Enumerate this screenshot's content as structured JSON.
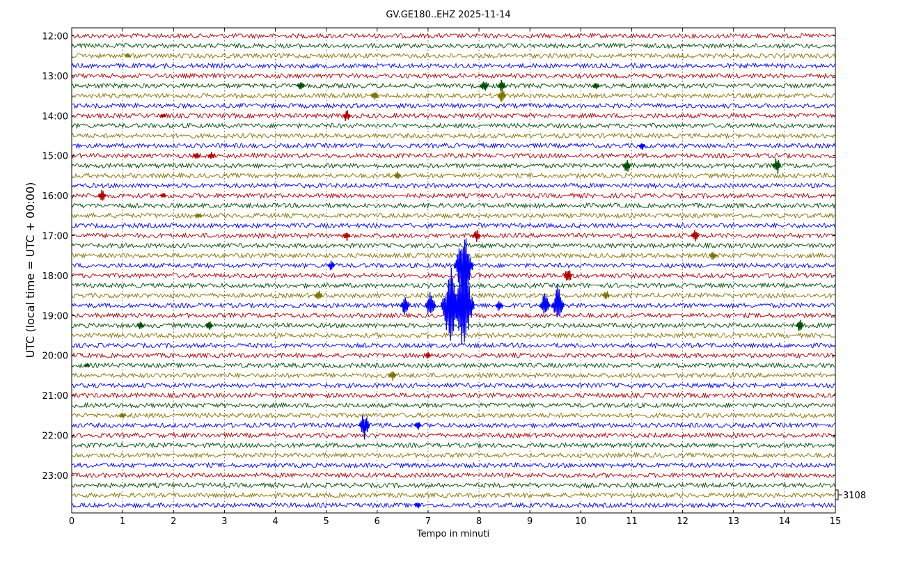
{
  "chart_data": {
    "type": "line",
    "title": "GV.GE180..EHZ 2025-11-14",
    "xlabel": "Tempo in minuti",
    "ylabel": "UTC (local time = UTC + 00:00)",
    "xlim": [
      0,
      15
    ],
    "x_ticks": [
      "0",
      "1",
      "2",
      "3",
      "4",
      "5",
      "6",
      "7",
      "8",
      "9",
      "10",
      "11",
      "12",
      "13",
      "14",
      "15"
    ],
    "y_ticks": [
      "12:00",
      "13:00",
      "14:00",
      "15:00",
      "16:00",
      "17:00",
      "18:00",
      "19:00",
      "20:00",
      "21:00",
      "22:00",
      "23:00"
    ],
    "scale_label": "3108",
    "trace_colors": [
      "#b30000",
      "#004d00",
      "#7f7300",
      "#0000ff"
    ],
    "traces_per_hour": 4,
    "trace_count": 48,
    "grid": "vertical dotted at each minute",
    "events": [
      {
        "trace": 2,
        "minute": 1.1,
        "amp": 4
      },
      {
        "trace": 5,
        "minute": 4.5,
        "amp": 9
      },
      {
        "trace": 5,
        "minute": 8.1,
        "amp": 12
      },
      {
        "trace": 5,
        "minute": 8.45,
        "amp": 10
      },
      {
        "trace": 5,
        "minute": 10.3,
        "amp": 8
      },
      {
        "trace": 6,
        "minute": 5.95,
        "amp": 10
      },
      {
        "trace": 6,
        "minute": 8.45,
        "amp": 12
      },
      {
        "trace": 8,
        "minute": 1.8,
        "amp": 5
      },
      {
        "trace": 8,
        "minute": 5.4,
        "amp": 10
      },
      {
        "trace": 11,
        "minute": 11.2,
        "amp": 7
      },
      {
        "trace": 12,
        "minute": 2.45,
        "amp": 6
      },
      {
        "trace": 12,
        "minute": 2.75,
        "amp": 7
      },
      {
        "trace": 13,
        "minute": 10.9,
        "amp": 12
      },
      {
        "trace": 13,
        "minute": 13.85,
        "amp": 14
      },
      {
        "trace": 14,
        "minute": 6.4,
        "amp": 6
      },
      {
        "trace": 16,
        "minute": 0.6,
        "amp": 10
      },
      {
        "trace": 16,
        "minute": 1.8,
        "amp": 5
      },
      {
        "trace": 18,
        "minute": 2.5,
        "amp": 5
      },
      {
        "trace": 20,
        "minute": 5.4,
        "amp": 8
      },
      {
        "trace": 20,
        "minute": 7.95,
        "amp": 10
      },
      {
        "trace": 20,
        "minute": 12.25,
        "amp": 11
      },
      {
        "trace": 22,
        "minute": 12.6,
        "amp": 9
      },
      {
        "trace": 23,
        "minute": 5.1,
        "amp": 8
      },
      {
        "trace": 23,
        "minute": 7.7,
        "amp": 55
      },
      {
        "trace": 24,
        "minute": 9.75,
        "amp": 14
      },
      {
        "trace": 26,
        "minute": 4.85,
        "amp": 9
      },
      {
        "trace": 26,
        "minute": 7.5,
        "amp": 8
      },
      {
        "trace": 26,
        "minute": 10.5,
        "amp": 8
      },
      {
        "trace": 27,
        "minute": 6.55,
        "amp": 16
      },
      {
        "trace": 27,
        "minute": 7.05,
        "amp": 22
      },
      {
        "trace": 27,
        "minute": 7.45,
        "amp": 60
      },
      {
        "trace": 27,
        "minute": 7.7,
        "amp": 70
      },
      {
        "trace": 27,
        "minute": 8.4,
        "amp": 10
      },
      {
        "trace": 27,
        "minute": 9.3,
        "amp": 22
      },
      {
        "trace": 27,
        "minute": 9.55,
        "amp": 30
      },
      {
        "trace": 29,
        "minute": 1.35,
        "amp": 7
      },
      {
        "trace": 29,
        "minute": 2.7,
        "amp": 9
      },
      {
        "trace": 29,
        "minute": 14.3,
        "amp": 10
      },
      {
        "trace": 32,
        "minute": 7.0,
        "amp": 5
      },
      {
        "trace": 33,
        "minute": 0.3,
        "amp": 4
      },
      {
        "trace": 34,
        "minute": 6.3,
        "amp": 9
      },
      {
        "trace": 38,
        "minute": 1.0,
        "amp": 5
      },
      {
        "trace": 39,
        "minute": 5.75,
        "amp": 22
      },
      {
        "trace": 39,
        "minute": 6.8,
        "amp": 7
      },
      {
        "trace": 47,
        "minute": 6.8,
        "amp": 5
      }
    ]
  }
}
